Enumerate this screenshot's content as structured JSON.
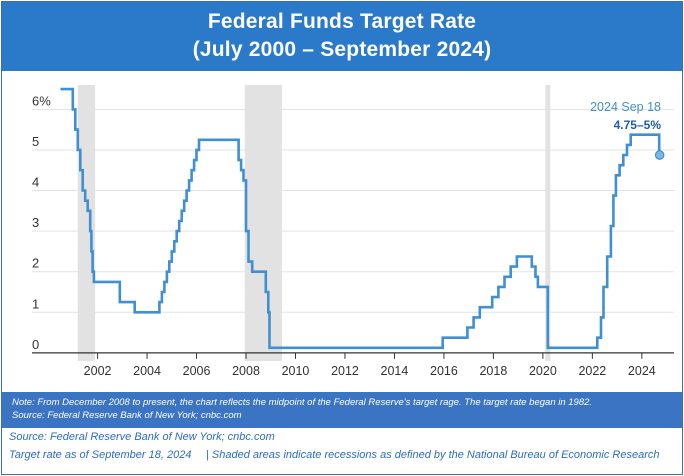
{
  "header": {
    "title_line1": "Federal Funds Target Rate",
    "title_line2": "(July 2000 – September 2024)"
  },
  "chart_data": {
    "type": "line",
    "title": "Federal Funds Target Rate (July 2000 – September 2024)",
    "xlabel": "",
    "ylabel": "",
    "xlim": [
      2000.4,
      2025.3
    ],
    "ylim": [
      -0.2,
      6.6
    ],
    "y_ticks": [
      "0",
      "1",
      "2",
      "3",
      "4",
      "5",
      "6%"
    ],
    "y_tick_values": [
      0,
      1,
      2,
      3,
      4,
      5,
      6
    ],
    "x_ticks": [
      "2002",
      "2004",
      "2006",
      "2008",
      "2010",
      "2012",
      "2014",
      "2016",
      "2018",
      "2020",
      "2022",
      "2024"
    ],
    "x_tick_values": [
      2002,
      2004,
      2006,
      2008,
      2010,
      2012,
      2014,
      2016,
      2018,
      2020,
      2022,
      2024
    ],
    "grid": "horizontal",
    "line_color": "#3f8fd2",
    "recession_color": "#e2e2e2",
    "recessions": [
      [
        2001.2,
        2001.9
      ],
      [
        2007.95,
        2009.45
      ],
      [
        2020.1,
        2020.3
      ]
    ],
    "series": [
      {
        "name": "",
        "x": [
          2000.5,
          2001.0,
          2001.1,
          2001.2,
          2001.3,
          2001.4,
          2001.5,
          2001.6,
          2001.7,
          2001.75,
          2001.8,
          2001.85,
          2001.95,
          2002.9,
          2003.5,
          2004.5,
          2004.6,
          2004.7,
          2004.8,
          2004.9,
          2005.0,
          2005.1,
          2005.2,
          2005.3,
          2005.4,
          2005.5,
          2005.6,
          2005.7,
          2005.8,
          2005.9,
          2006.0,
          2006.1,
          2006.2,
          2006.3,
          2006.45,
          2006.55,
          2007.7,
          2007.8,
          2007.9,
          2008.0,
          2008.1,
          2008.25,
          2008.35,
          2008.8,
          2008.9,
          2008.95,
          2015.95,
          2016.95,
          2017.2,
          2017.45,
          2017.95,
          2018.2,
          2018.45,
          2018.7,
          2018.95,
          2019.55,
          2019.7,
          2019.8,
          2020.2,
          2020.25,
          2022.2,
          2022.35,
          2022.45,
          2022.6,
          2022.75,
          2022.85,
          2022.95,
          2023.1,
          2023.25,
          2023.4,
          2023.55,
          2024.7,
          2024.72
        ],
        "y": [
          6.5,
          6.0,
          5.5,
          5.0,
          4.5,
          4.0,
          3.75,
          3.5,
          3.0,
          2.5,
          2.0,
          1.75,
          1.75,
          1.25,
          1.0,
          1.25,
          1.5,
          1.75,
          2.0,
          2.25,
          2.5,
          2.75,
          3.0,
          3.25,
          3.5,
          3.75,
          4.0,
          4.25,
          4.5,
          4.75,
          5.0,
          5.25,
          5.25,
          5.25,
          5.25,
          5.25,
          4.75,
          4.5,
          4.25,
          3.0,
          2.25,
          2.0,
          2.0,
          1.5,
          1.0,
          0.125,
          0.375,
          0.625,
          0.875,
          1.125,
          1.375,
          1.625,
          1.875,
          2.125,
          2.375,
          2.125,
          1.875,
          1.625,
          0.125,
          0.125,
          0.375,
          0.875,
          1.625,
          2.375,
          3.125,
          3.875,
          4.375,
          4.625,
          4.875,
          5.125,
          5.375,
          4.875,
          4.875
        ]
      }
    ],
    "annotation": {
      "date_label": "2024 Sep 18",
      "value_label": "4.75–5%",
      "x": 2024.72,
      "y": 4.875
    }
  },
  "footer": {
    "note_line1": "Note: From December 2008 to present, the chart reflects the midpoint of the Federal Reserve's target rage. The target rate began in 1982.",
    "note_line2": "Source: Federal Reserve Bank of New York; cnbc.com",
    "source": "Source: Federal Reserve Bank of New York; cnbc.com",
    "as_of": "Target rate as of September 18, 2024",
    "recession_note": "| Shaded areas indicate recessions as defined by the National Bureau of Economic Research"
  }
}
